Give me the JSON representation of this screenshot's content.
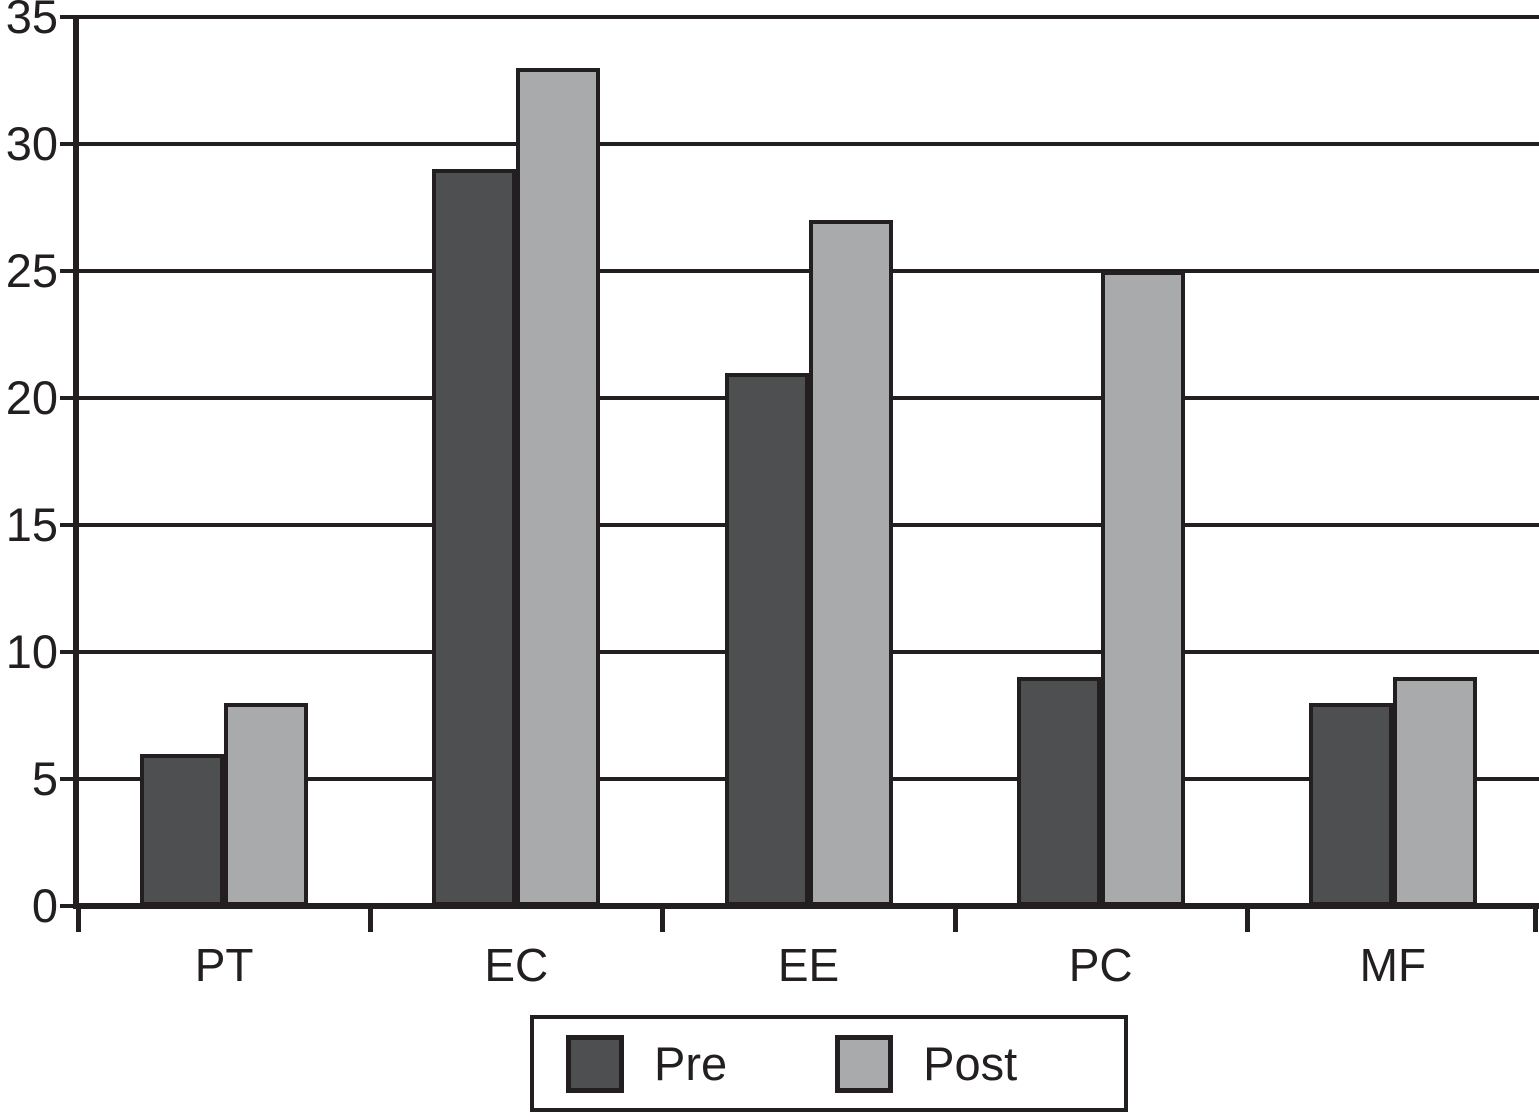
{
  "figure": {
    "background": "#ffffff",
    "line_color": "#231f20"
  },
  "chart_data": {
    "type": "bar",
    "categories": [
      "PT",
      "EC",
      "EE",
      "PC",
      "MF"
    ],
    "series": [
      {
        "name": "Pre",
        "color": "#4e4f51",
        "values": [
          6,
          29,
          21,
          9,
          8
        ]
      },
      {
        "name": "Post",
        "color": "#a8aaac",
        "values": [
          8,
          33,
          27,
          25,
          9
        ]
      }
    ],
    "title": "",
    "xlabel": "",
    "ylabel": "",
    "ylim": [
      0,
      35
    ],
    "yticks": [
      0,
      5,
      10,
      15,
      20,
      25,
      30,
      35
    ],
    "grid": "horizontal",
    "legend": {
      "position": "bottom-center",
      "boxed": true,
      "entries": [
        "Pre",
        "Post"
      ]
    }
  }
}
